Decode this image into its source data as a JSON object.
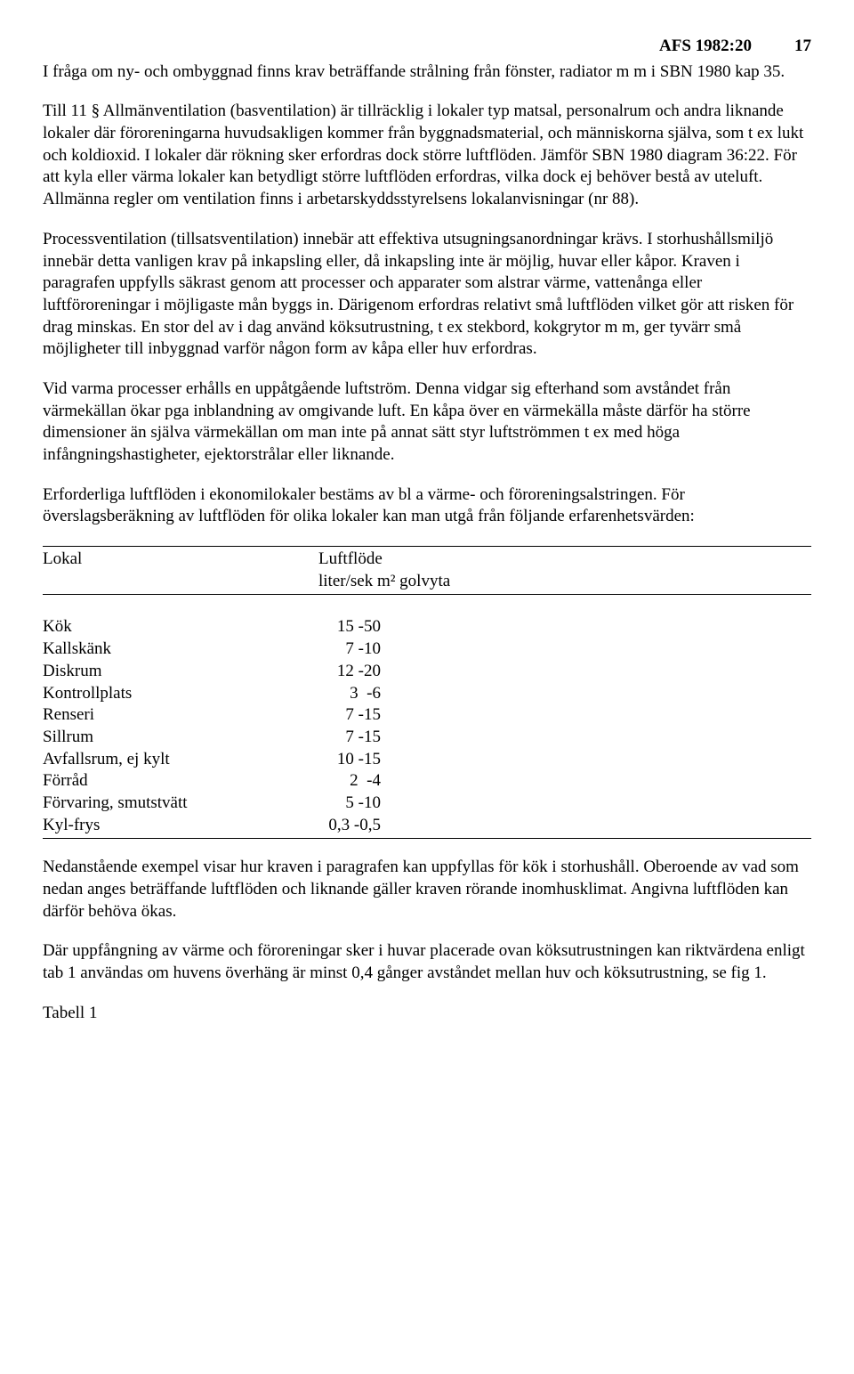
{
  "header": {
    "doc_ref": "AFS 1982:20",
    "page_no": "17"
  },
  "paragraphs": {
    "p1": "I fråga om ny- och ombyggnad finns krav beträffande strålning från fönster, radiator m m i SBN 1980 kap 35.",
    "p2": "Till 11 § Allmänventilation (basventilation) är tillräcklig i lokaler typ matsal, personalrum och andra liknande lokaler där föroreningarna huvudsakligen kommer från byggnadsmaterial, och människorna själva, som t ex lukt och koldioxid. I lokaler där rökning sker erfordras dock större luftflöden. Jämför SBN 1980 diagram 36:22. För att kyla eller värma lokaler kan betydligt större luftflöden erfordras, vilka dock ej behöver bestå av uteluft. Allmänna regler om ventilation finns i arbetarskyddsstyrelsens lokalanvisningar (nr 88).",
    "p3": "Processventilation (tillsatsventilation) innebär att effektiva utsugningsanordningar krävs. I storhushållsmiljö innebär detta vanligen krav på inkapsling eller, då inkapsling inte är möjlig, huvar eller kåpor. Kraven i paragrafen uppfylls säkrast genom att processer och apparater som alstrar värme, vattenånga eller luftföroreningar i möjligaste mån byggs in. Därigenom erfordras relativt små luftflöden vilket gör att risken för drag minskas. En stor del av i dag använd köksutrustning, t ex stekbord, kokgrytor m m, ger tyvärr små möjligheter till inbyggnad varför någon form av kåpa eller huv erfordras.",
    "p4": "Vid varma processer erhålls en uppåtgående luftström. Denna vidgar sig efterhand som avståndet från värmekällan ökar pga inblandning av omgivande luft. En kåpa över en värmekälla måste därför ha större dimensioner än själva värmekällan om man inte på annat sätt styr luftströmmen t ex med höga infångningshastigheter, ejektorstrålar eller liknande.",
    "p5": "Erforderliga luftflöden i ekonomilokaler bestäms av bl a värme- och föroreningsalstringen. För överslagsberäkning av luftflöden för olika lokaler kan man utgå från följande erfarenhetsvärden:",
    "p6": "Nedanstående exempel visar hur kraven i paragrafen kan uppfyllas för kök i storhushåll. Oberoende av vad som nedan anges beträffande luftflöden och liknande gäller kraven rörande inomhusklimat. Angivna luftflöden kan därför behöva ökas.",
    "p7": "Där uppfångning av värme och föroreningar sker i huvar placerade ovan köksutrustningen kan riktvärdena enligt tab 1 användas om huvens överhäng är minst 0,4 gånger avståndet mellan huv och köksutrustning, se fig 1."
  },
  "table": {
    "col_a_header": "Lokal",
    "col_b_header_line1": "Luftflöde",
    "col_b_header_line2": "liter/sek m² golvyta",
    "rows": [
      {
        "name": "Kök",
        "val": "15 -50"
      },
      {
        "name": "Kallskänk",
        "val": "7 -10"
      },
      {
        "name": "Diskrum",
        "val": "12 -20"
      },
      {
        "name": "Kontrollplats",
        "val": "3  -6"
      },
      {
        "name": "Renseri",
        "val": "7 -15"
      },
      {
        "name": "Sillrum",
        "val": "7 -15"
      },
      {
        "name": "Avfallsrum, ej kylt",
        "val": "10 -15"
      },
      {
        "name": "Förråd",
        "val": "2  -4"
      },
      {
        "name": "Förvaring, smutstvätt",
        "val": "5 -10"
      },
      {
        "name": "Kyl-frys",
        "val": "0,3 -0,5"
      }
    ]
  },
  "footer": {
    "table_label": "Tabell 1"
  }
}
